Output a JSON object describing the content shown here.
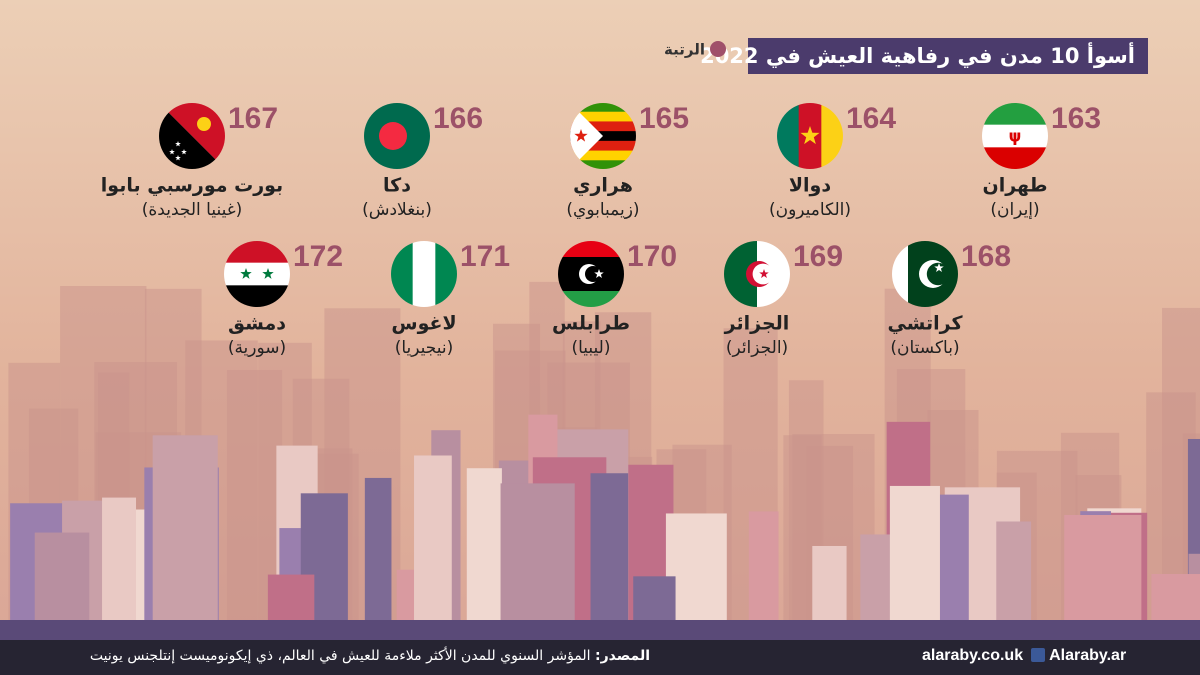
{
  "header": {
    "title": "أسوأ 10 مدن في رفاهية العيش في 2022",
    "legend": "الرتبة"
  },
  "cities": [
    {
      "rank": 163,
      "city": "طهران",
      "country": "(إيران)"
    },
    {
      "rank": 164,
      "city": "دوالا",
      "country": "(الكاميرون)"
    },
    {
      "rank": 165,
      "city": "هراري",
      "country": "(زيمبابوي)"
    },
    {
      "rank": 166,
      "city": "دكا",
      "country": "(بنغلادش)"
    },
    {
      "rank": 167,
      "city": "بورت مورسبي بابوا",
      "country": "(غينيا الجديدة)"
    },
    {
      "rank": 168,
      "city": "كراتشي",
      "country": "(باكستان)"
    },
    {
      "rank": 169,
      "city": "الجزائر",
      "country": "(الجزائر)"
    },
    {
      "rank": 170,
      "city": "طرابلس",
      "country": "(ليبيا)"
    },
    {
      "rank": 171,
      "city": "لاغوس",
      "country": "(نيجيريا)"
    },
    {
      "rank": 172,
      "city": "دمشق",
      "country": "(سورية)"
    }
  ],
  "footer": {
    "source_label": "المصدر:",
    "source": "المؤشر السنوي للمدن الأكثر ملاءمة للعيش في العالم، ذي إيكونوميست إنتلجنس يونيت",
    "website": "alaraby.co.uk",
    "facebook": "Alaraby.ar"
  }
}
